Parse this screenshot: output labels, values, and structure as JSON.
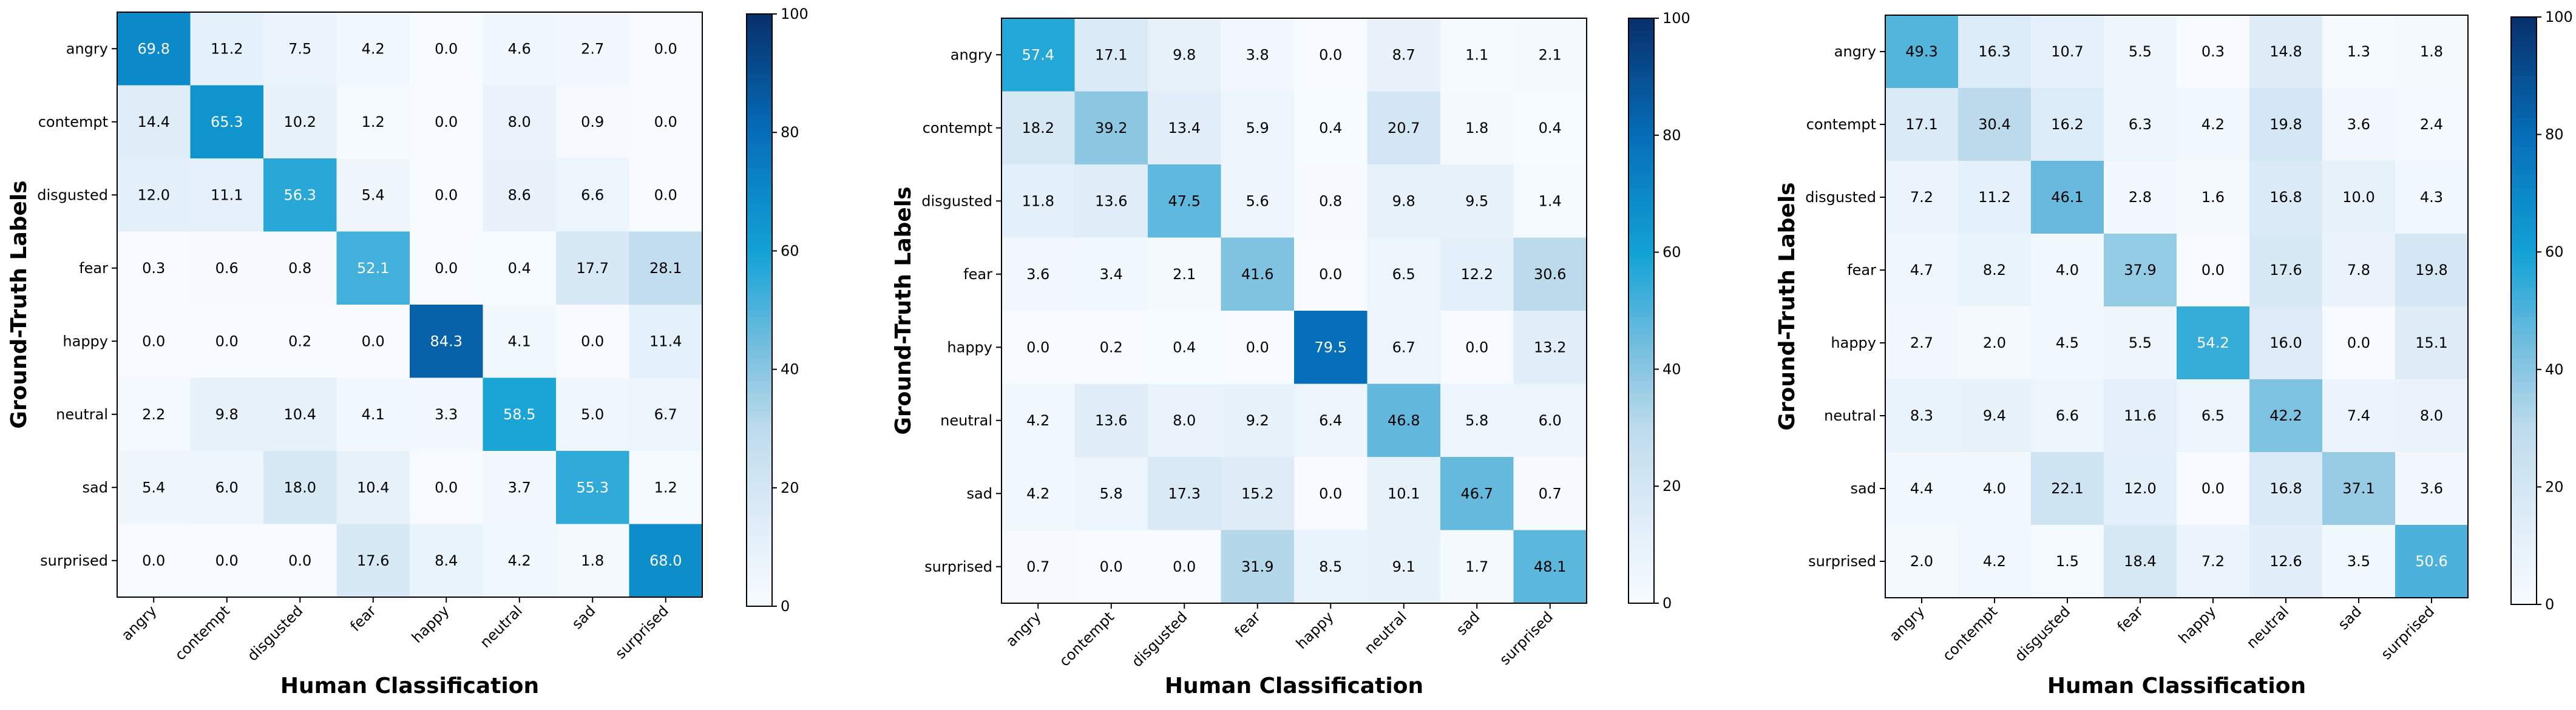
{
  "chart_data": [
    {
      "type": "heatmap",
      "xlabel": "Human Classification",
      "ylabel": "Ground-Truth Labels",
      "x_categories": [
        "angry",
        "contempt",
        "disgusted",
        "fear",
        "happy",
        "neutral",
        "sad",
        "surprised"
      ],
      "y_categories": [
        "angry",
        "contempt",
        "disgusted",
        "fear",
        "happy",
        "neutral",
        "sad",
        "surprised"
      ],
      "values": [
        [
          69.8,
          11.2,
          7.5,
          4.2,
          0.0,
          4.6,
          2.7,
          0.0
        ],
        [
          14.4,
          65.3,
          10.2,
          1.2,
          0.0,
          8.0,
          0.9,
          0.0
        ],
        [
          12.0,
          11.1,
          56.3,
          5.4,
          0.0,
          8.6,
          6.6,
          0.0
        ],
        [
          0.3,
          0.6,
          0.8,
          52.1,
          0.0,
          0.4,
          17.7,
          28.1
        ],
        [
          0.0,
          0.0,
          0.2,
          0.0,
          84.3,
          4.1,
          0.0,
          11.4
        ],
        [
          2.2,
          9.8,
          10.4,
          4.1,
          3.3,
          58.5,
          5.0,
          6.7
        ],
        [
          5.4,
          6.0,
          18.0,
          10.4,
          0.0,
          3.7,
          55.3,
          1.2
        ],
        [
          0.0,
          0.0,
          0.0,
          17.6,
          8.4,
          4.2,
          1.8,
          68.0
        ]
      ],
      "colorbar": {
        "min": 0,
        "max": 100,
        "ticks": [
          "0",
          "20",
          "40",
          "60",
          "80",
          "100"
        ]
      }
    },
    {
      "type": "heatmap",
      "xlabel": "Human Classification",
      "ylabel": "Ground-Truth Labels",
      "x_categories": [
        "angry",
        "contempt",
        "disgusted",
        "fear",
        "happy",
        "neutral",
        "sad",
        "surprised"
      ],
      "y_categories": [
        "angry",
        "contempt",
        "disgusted",
        "fear",
        "happy",
        "neutral",
        "sad",
        "surprised"
      ],
      "values": [
        [
          57.4,
          17.1,
          9.8,
          3.8,
          0.0,
          8.7,
          1.1,
          2.1
        ],
        [
          18.2,
          39.2,
          13.4,
          5.9,
          0.4,
          20.7,
          1.8,
          0.4
        ],
        [
          11.8,
          13.6,
          47.5,
          5.6,
          0.8,
          9.8,
          9.5,
          1.4
        ],
        [
          3.6,
          3.4,
          2.1,
          41.6,
          0.0,
          6.5,
          12.2,
          30.6
        ],
        [
          0.0,
          0.2,
          0.4,
          0.0,
          79.5,
          6.7,
          0.0,
          13.2
        ],
        [
          4.2,
          13.6,
          8.0,
          9.2,
          6.4,
          46.8,
          5.8,
          6.0
        ],
        [
          4.2,
          5.8,
          17.3,
          15.2,
          0.0,
          10.1,
          46.7,
          0.7
        ],
        [
          0.7,
          0.0,
          0.0,
          31.9,
          8.5,
          9.1,
          1.7,
          48.1
        ]
      ],
      "colorbar": {
        "min": 0,
        "max": 100,
        "ticks": [
          "0",
          "20",
          "40",
          "60",
          "80",
          "100"
        ]
      }
    },
    {
      "type": "heatmap",
      "xlabel": "Human Classification",
      "ylabel": "Ground-Truth Labels",
      "x_categories": [
        "angry",
        "contempt",
        "disgusted",
        "fear",
        "happy",
        "neutral",
        "sad",
        "surprised"
      ],
      "y_categories": [
        "angry",
        "contempt",
        "disgusted",
        "fear",
        "happy",
        "neutral",
        "sad",
        "surprised"
      ],
      "values": [
        [
          49.3,
          16.3,
          10.7,
          5.5,
          0.3,
          14.8,
          1.3,
          1.8
        ],
        [
          17.1,
          30.4,
          16.2,
          6.3,
          4.2,
          19.8,
          3.6,
          2.4
        ],
        [
          7.2,
          11.2,
          46.1,
          2.8,
          1.6,
          16.8,
          10.0,
          4.3
        ],
        [
          4.7,
          8.2,
          4.0,
          37.9,
          0.0,
          17.6,
          7.8,
          19.8
        ],
        [
          2.7,
          2.0,
          4.5,
          5.5,
          54.2,
          16.0,
          0.0,
          15.1
        ],
        [
          8.3,
          9.4,
          6.6,
          11.6,
          6.5,
          42.2,
          7.4,
          8.0
        ],
        [
          4.4,
          4.0,
          22.1,
          12.0,
          0.0,
          16.8,
          37.1,
          3.6
        ],
        [
          2.0,
          4.2,
          1.5,
          18.4,
          7.2,
          12.6,
          3.5,
          50.6
        ]
      ],
      "colorbar": {
        "min": 0,
        "max": 100,
        "ticks": [
          "0",
          "20",
          "40",
          "60",
          "80",
          "100"
        ]
      }
    }
  ]
}
